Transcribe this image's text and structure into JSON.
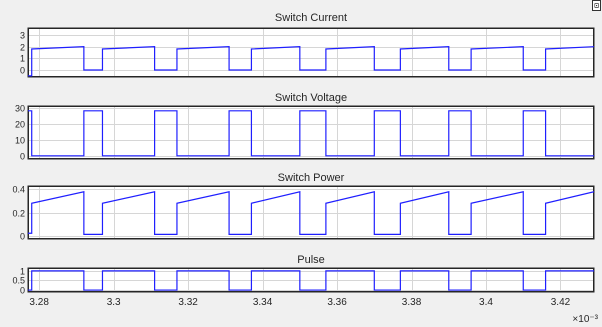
{
  "toolbar": {
    "corner_button_glyph": "⊡"
  },
  "x_axis": {
    "exponent_label": "×10⁻³",
    "tick_labels": [
      "3.28",
      "3.3",
      "3.32",
      "3.34",
      "3.36",
      "3.38",
      "3.4",
      "3.42"
    ],
    "tick_values": [
      3.28,
      3.3,
      3.32,
      3.34,
      3.36,
      3.38,
      3.4,
      3.42
    ],
    "xlim": [
      3.277,
      3.429
    ]
  },
  "colors": {
    "trace": "#1f1fff",
    "grid": "#d6d6d6",
    "axes_bg": "#ffffff",
    "figure_bg": "#f0f0f0"
  },
  "chart_data": [
    {
      "type": "line",
      "title": "Switch Current",
      "ylim": [
        -0.6,
        3.6
      ],
      "yticks": [
        0,
        1,
        2,
        3
      ],
      "ytick_labels": [
        "0",
        "1",
        "2",
        "3"
      ],
      "series": [
        {
          "points": [
            [
              3.277,
              -0.5
            ],
            [
              3.278,
              -0.5
            ],
            [
              3.278,
              1.8
            ],
            [
              3.292,
              2.0
            ],
            [
              3.292,
              0.0
            ],
            [
              3.297,
              0.0
            ],
            [
              3.297,
              1.8
            ],
            [
              3.311,
              2.0
            ],
            [
              3.311,
              0.0
            ],
            [
              3.317,
              0.0
            ],
            [
              3.317,
              1.8
            ],
            [
              3.331,
              2.0
            ],
            [
              3.331,
              0.0
            ],
            [
              3.337,
              0.0
            ],
            [
              3.337,
              1.8
            ],
            [
              3.35,
              2.0
            ],
            [
              3.35,
              0.0
            ],
            [
              3.357,
              0.0
            ],
            [
              3.357,
              1.8
            ],
            [
              3.37,
              2.0
            ],
            [
              3.37,
              0.0
            ],
            [
              3.377,
              0.0
            ],
            [
              3.377,
              1.8
            ],
            [
              3.39,
              2.0
            ],
            [
              3.39,
              0.0
            ],
            [
              3.396,
              0.0
            ],
            [
              3.396,
              1.8
            ],
            [
              3.41,
              2.0
            ],
            [
              3.41,
              0.0
            ],
            [
              3.416,
              0.0
            ],
            [
              3.416,
              1.8
            ],
            [
              3.429,
              2.0
            ]
          ]
        }
      ]
    },
    {
      "type": "line",
      "title": "Switch Voltage",
      "ylim": [
        -2,
        31
      ],
      "yticks": [
        0,
        10,
        20,
        30
      ],
      "ytick_labels": [
        "0",
        "10",
        "20",
        "30"
      ],
      "series": [
        {
          "points": [
            [
              3.277,
              28
            ],
            [
              3.278,
              28
            ],
            [
              3.278,
              0
            ],
            [
              3.292,
              0
            ],
            [
              3.292,
              28
            ],
            [
              3.297,
              28
            ],
            [
              3.297,
              0
            ],
            [
              3.311,
              0
            ],
            [
              3.311,
              28
            ],
            [
              3.317,
              28
            ],
            [
              3.317,
              0
            ],
            [
              3.331,
              0
            ],
            [
              3.331,
              28
            ],
            [
              3.337,
              28
            ],
            [
              3.337,
              0
            ],
            [
              3.35,
              0
            ],
            [
              3.35,
              28
            ],
            [
              3.357,
              28
            ],
            [
              3.357,
              0
            ],
            [
              3.37,
              0
            ],
            [
              3.37,
              28
            ],
            [
              3.377,
              28
            ],
            [
              3.377,
              0
            ],
            [
              3.39,
              0
            ],
            [
              3.39,
              28
            ],
            [
              3.396,
              28
            ],
            [
              3.396,
              0
            ],
            [
              3.41,
              0
            ],
            [
              3.41,
              28
            ],
            [
              3.416,
              28
            ],
            [
              3.416,
              0
            ],
            [
              3.429,
              0
            ]
          ]
        }
      ]
    },
    {
      "type": "line",
      "title": "Switch Power",
      "ylim": [
        -0.03,
        0.43
      ],
      "yticks": [
        0,
        0.2,
        0.4
      ],
      "ytick_labels": [
        "0",
        "0.2",
        "0.4"
      ],
      "series": [
        {
          "points": [
            [
              3.277,
              0.02
            ],
            [
              3.278,
              0.02
            ],
            [
              3.278,
              0.28
            ],
            [
              3.292,
              0.38
            ],
            [
              3.292,
              0.01
            ],
            [
              3.297,
              0.01
            ],
            [
              3.297,
              0.28
            ],
            [
              3.311,
              0.38
            ],
            [
              3.311,
              0.01
            ],
            [
              3.317,
              0.01
            ],
            [
              3.317,
              0.28
            ],
            [
              3.331,
              0.38
            ],
            [
              3.331,
              0.01
            ],
            [
              3.337,
              0.01
            ],
            [
              3.337,
              0.28
            ],
            [
              3.35,
              0.38
            ],
            [
              3.35,
              0.01
            ],
            [
              3.357,
              0.01
            ],
            [
              3.357,
              0.28
            ],
            [
              3.37,
              0.38
            ],
            [
              3.37,
              0.01
            ],
            [
              3.377,
              0.01
            ],
            [
              3.377,
              0.28
            ],
            [
              3.39,
              0.38
            ],
            [
              3.39,
              0.01
            ],
            [
              3.396,
              0.01
            ],
            [
              3.396,
              0.28
            ],
            [
              3.41,
              0.38
            ],
            [
              3.41,
              0.01
            ],
            [
              3.416,
              0.01
            ],
            [
              3.416,
              0.28
            ],
            [
              3.429,
              0.38
            ]
          ]
        }
      ]
    },
    {
      "type": "line",
      "title": "Pulse",
      "ylim": [
        -0.1,
        1.15
      ],
      "yticks": [
        0,
        0.5,
        1
      ],
      "ytick_labels": [
        "0",
        "0.5",
        "1"
      ],
      "series": [
        {
          "points": [
            [
              3.277,
              0
            ],
            [
              3.278,
              0
            ],
            [
              3.278,
              1
            ],
            [
              3.292,
              1
            ],
            [
              3.292,
              0
            ],
            [
              3.297,
              0
            ],
            [
              3.297,
              1
            ],
            [
              3.311,
              1
            ],
            [
              3.311,
              0
            ],
            [
              3.317,
              0
            ],
            [
              3.317,
              1
            ],
            [
              3.331,
              1
            ],
            [
              3.331,
              0
            ],
            [
              3.337,
              0
            ],
            [
              3.337,
              1
            ],
            [
              3.35,
              1
            ],
            [
              3.35,
              0
            ],
            [
              3.357,
              0
            ],
            [
              3.357,
              1
            ],
            [
              3.37,
              1
            ],
            [
              3.37,
              0
            ],
            [
              3.377,
              0
            ],
            [
              3.377,
              1
            ],
            [
              3.39,
              1
            ],
            [
              3.39,
              0
            ],
            [
              3.396,
              0
            ],
            [
              3.396,
              1
            ],
            [
              3.41,
              1
            ],
            [
              3.41,
              0
            ],
            [
              3.416,
              0
            ],
            [
              3.416,
              1
            ],
            [
              3.429,
              1
            ]
          ]
        }
      ]
    }
  ]
}
